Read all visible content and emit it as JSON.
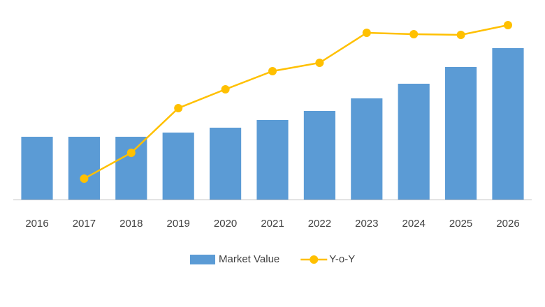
{
  "chart_data": {
    "type": "bar-line",
    "categories": [
      "2016",
      "2017",
      "2018",
      "2019",
      "2020",
      "2021",
      "2022",
      "2023",
      "2024",
      "2025",
      "2026"
    ],
    "series": [
      {
        "name": "Market Value",
        "type": "bar",
        "color": "#5b9bd5",
        "values": [
          90,
          90,
          90,
          96,
          103,
          114,
          127,
          145,
          166,
          190,
          217
        ]
      },
      {
        "name": "Y-o-Y",
        "type": "line",
        "axis": "y2",
        "color": "#ffc000",
        "values": [
          null,
          30,
          67,
          131,
          158,
          184,
          196,
          239,
          237,
          236,
          250
        ]
      }
    ],
    "ylim": [
      0,
      260
    ],
    "y2lim": [
      0,
      260
    ]
  }
}
